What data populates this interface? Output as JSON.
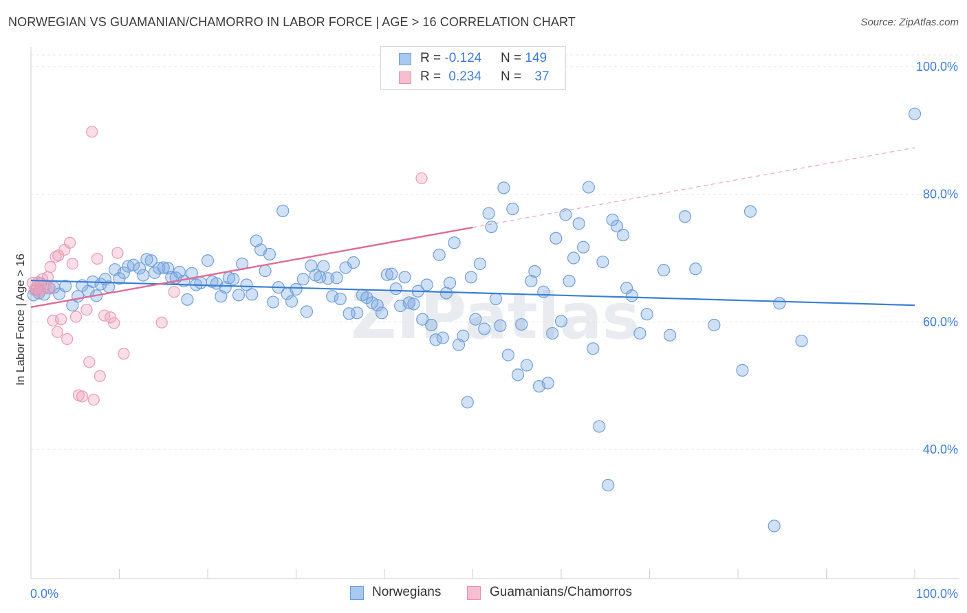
{
  "title": "NORWEGIAN VS GUAMANIAN/CHAMORRO IN LABOR FORCE | AGE > 16 CORRELATION CHART",
  "source": "Source: ZipAtlas.com",
  "watermark": "ZIPatlas",
  "legend_top": {
    "rows": [
      {
        "r_label": "R = ",
        "r_value": "-0.124",
        "n_label": "N = ",
        "n_value": "149",
        "color": "#a9c8f0",
        "border": "#6a9fd8"
      },
      {
        "r_label": "R = ",
        "r_value": "0.234",
        "n_label": "N = ",
        "n_value": "37",
        "color": "#f6bfcf",
        "border": "#e890aa"
      }
    ]
  },
  "legend_bottom": {
    "items": [
      {
        "label": "Norwegians",
        "color": "#a9c8f0",
        "border": "#6a9fd8"
      },
      {
        "label": "Guamanians/Chamorros",
        "color": "#f6bfcf",
        "border": "#e890aa"
      }
    ]
  },
  "colors": {
    "blue_fill": "rgba(120,165,225,0.35)",
    "blue_stroke": "#6f9fd9",
    "blue_line": "#3a7fd0",
    "pink_fill": "rgba(240,160,185,0.35)",
    "pink_stroke": "#e79ab2",
    "pink_line": "#e06b95",
    "tick_label": "#3d7dd6",
    "grid": "#e3e3e3"
  },
  "chart_data": {
    "type": "scatter",
    "title": "NORWEGIAN VS GUAMANIAN/CHAMORRO IN LABOR FORCE | AGE > 16 CORRELATION CHART",
    "xlabel": "",
    "ylabel": "In Labor Force | Age > 16",
    "xlim": [
      0,
      100
    ],
    "ylim": [
      20,
      102
    ],
    "x_tick_labels": [
      "0.0%",
      "100.0%"
    ],
    "y_ticks": [
      40,
      60,
      80,
      100
    ],
    "y_tick_labels": [
      "40.0%",
      "60.0%",
      "80.0%",
      "100.0%"
    ],
    "grid": true,
    "legend_position": "top-center",
    "series": [
      {
        "name": "Norwegians",
        "trend": {
          "x": [
            0,
            100
          ],
          "y": [
            66.5,
            62.6
          ]
        },
        "points": [
          [
            0.3,
            64.2
          ],
          [
            0.6,
            65.0
          ],
          [
            0.9,
            64.5
          ],
          [
            1.1,
            66.0
          ],
          [
            1.5,
            64.3
          ],
          [
            2.0,
            65.3
          ],
          [
            2.6,
            65.4
          ],
          [
            3.2,
            64.4
          ],
          [
            3.9,
            65.6
          ],
          [
            4.7,
            62.6
          ],
          [
            5.3,
            64.0
          ],
          [
            5.8,
            65.7
          ],
          [
            6.5,
            64.8
          ],
          [
            7.0,
            66.3
          ],
          [
            7.4,
            64.1
          ],
          [
            7.9,
            65.9
          ],
          [
            8.4,
            66.7
          ],
          [
            8.8,
            65.5
          ],
          [
            9.5,
            68.2
          ],
          [
            10.0,
            66.8
          ],
          [
            10.5,
            67.7
          ],
          [
            11.0,
            68.7
          ],
          [
            11.6,
            68.9
          ],
          [
            12.3,
            68.4
          ],
          [
            12.7,
            67.3
          ],
          [
            13.1,
            69.8
          ],
          [
            13.6,
            69.6
          ],
          [
            14.0,
            67.7
          ],
          [
            14.5,
            68.4
          ],
          [
            15.0,
            68.5
          ],
          [
            15.5,
            68.4
          ],
          [
            15.9,
            67.0
          ],
          [
            16.4,
            66.9
          ],
          [
            16.8,
            67.8
          ],
          [
            17.3,
            66.4
          ],
          [
            17.7,
            63.5
          ],
          [
            18.2,
            67.6
          ],
          [
            18.7,
            65.8
          ],
          [
            19.2,
            66.1
          ],
          [
            20.0,
            69.6
          ],
          [
            20.5,
            66.3
          ],
          [
            21.0,
            66.0
          ],
          [
            21.5,
            64.0
          ],
          [
            22.0,
            65.4
          ],
          [
            22.4,
            66.9
          ],
          [
            22.9,
            66.7
          ],
          [
            23.5,
            64.2
          ],
          [
            23.9,
            69.1
          ],
          [
            24.4,
            65.8
          ],
          [
            25.0,
            64.3
          ],
          [
            25.5,
            72.7
          ],
          [
            26.0,
            71.3
          ],
          [
            26.5,
            68.0
          ],
          [
            27.0,
            70.6
          ],
          [
            27.4,
            63.1
          ],
          [
            28.0,
            65.4
          ],
          [
            28.5,
            77.4
          ],
          [
            29.0,
            64.4
          ],
          [
            29.5,
            63.2
          ],
          [
            30.0,
            65.1
          ],
          [
            30.8,
            66.7
          ],
          [
            31.2,
            61.6
          ],
          [
            31.7,
            68.8
          ],
          [
            32.2,
            67.3
          ],
          [
            32.7,
            67.0
          ],
          [
            33.1,
            68.7
          ],
          [
            33.6,
            66.8
          ],
          [
            34.1,
            64.0
          ],
          [
            34.6,
            66.9
          ],
          [
            35.0,
            63.6
          ],
          [
            35.6,
            68.5
          ],
          [
            36.0,
            61.3
          ],
          [
            36.5,
            69.3
          ],
          [
            36.9,
            61.4
          ],
          [
            37.5,
            64.2
          ],
          [
            38.0,
            63.8
          ],
          [
            38.6,
            63.0
          ],
          [
            39.2,
            62.6
          ],
          [
            39.7,
            61.4
          ],
          [
            40.3,
            67.4
          ],
          [
            40.8,
            67.5
          ],
          [
            41.3,
            65.2
          ],
          [
            41.8,
            62.5
          ],
          [
            42.3,
            67.0
          ],
          [
            42.8,
            63.0
          ],
          [
            43.3,
            62.8
          ],
          [
            43.8,
            64.8
          ],
          [
            44.3,
            60.4
          ],
          [
            44.8,
            65.8
          ],
          [
            45.3,
            59.5
          ],
          [
            45.8,
            57.2
          ],
          [
            46.2,
            70.5
          ],
          [
            46.6,
            57.5
          ],
          [
            47.0,
            64.5
          ],
          [
            47.4,
            66.1
          ],
          [
            47.9,
            72.4
          ],
          [
            48.4,
            56.4
          ],
          [
            48.9,
            57.8
          ],
          [
            49.4,
            47.4
          ],
          [
            49.8,
            67.0
          ],
          [
            50.3,
            60.4
          ],
          [
            50.8,
            69.1
          ],
          [
            51.3,
            58.9
          ],
          [
            51.8,
            77.0
          ],
          [
            52.1,
            74.9
          ],
          [
            52.6,
            63.6
          ],
          [
            53.1,
            59.4
          ],
          [
            53.5,
            81.0
          ],
          [
            54.0,
            54.8
          ],
          [
            54.5,
            77.7
          ],
          [
            55.1,
            51.7
          ],
          [
            55.5,
            59.6
          ],
          [
            56.1,
            53.2
          ],
          [
            56.6,
            66.4
          ],
          [
            57.0,
            67.9
          ],
          [
            57.5,
            49.9
          ],
          [
            58.0,
            64.7
          ],
          [
            58.5,
            50.4
          ],
          [
            59.0,
            58.2
          ],
          [
            59.4,
            73.1
          ],
          [
            60.0,
            60.1
          ],
          [
            60.5,
            76.8
          ],
          [
            60.9,
            66.4
          ],
          [
            61.4,
            70.0
          ],
          [
            62.0,
            75.4
          ],
          [
            62.5,
            71.7
          ],
          [
            63.1,
            81.1
          ],
          [
            63.6,
            55.8
          ],
          [
            64.3,
            43.6
          ],
          [
            64.7,
            69.4
          ],
          [
            65.3,
            34.4
          ],
          [
            65.8,
            76.0
          ],
          [
            66.3,
            75.0
          ],
          [
            67.0,
            73.6
          ],
          [
            67.4,
            65.3
          ],
          [
            68.0,
            64.1
          ],
          [
            68.9,
            58.2
          ],
          [
            69.7,
            61.2
          ],
          [
            71.6,
            68.1
          ],
          [
            72.3,
            57.9
          ],
          [
            74.0,
            76.5
          ],
          [
            75.2,
            68.3
          ],
          [
            77.3,
            59.5
          ],
          [
            80.5,
            52.4
          ],
          [
            81.4,
            77.3
          ],
          [
            84.1,
            28.0
          ],
          [
            84.7,
            62.9
          ],
          [
            87.2,
            57.0
          ],
          [
            100.0,
            92.6
          ]
        ]
      },
      {
        "name": "Guamanians/Chamorros",
        "trend": {
          "x": [
            0,
            50
          ],
          "y": [
            62.3,
            74.8
          ]
        },
        "trend_extension": {
          "x": [
            50,
            100
          ],
          "y": [
            74.8,
            87.3
          ]
        },
        "points": [
          [
            0.2,
            66.1
          ],
          [
            0.4,
            65.0
          ],
          [
            0.6,
            65.4
          ],
          [
            0.8,
            66.2
          ],
          [
            1.0,
            64.9
          ],
          [
            1.3,
            66.7
          ],
          [
            1.6,
            65.5
          ],
          [
            1.9,
            67.0
          ],
          [
            2.2,
            68.6
          ],
          [
            2.5,
            60.2
          ],
          [
            2.8,
            70.2
          ],
          [
            3.1,
            70.4
          ],
          [
            3.4,
            60.4
          ],
          [
            3.8,
            71.3
          ],
          [
            4.1,
            57.3
          ],
          [
            4.4,
            72.4
          ],
          [
            4.7,
            69.1
          ],
          [
            5.1,
            60.8
          ],
          [
            5.4,
            48.5
          ],
          [
            5.8,
            48.3
          ],
          [
            6.3,
            61.9
          ],
          [
            6.6,
            53.7
          ],
          [
            6.9,
            89.8
          ],
          [
            7.1,
            47.8
          ],
          [
            7.5,
            69.9
          ],
          [
            7.8,
            51.5
          ],
          [
            8.3,
            61.0
          ],
          [
            9.0,
            60.7
          ],
          [
            9.4,
            59.8
          ],
          [
            9.8,
            70.8
          ],
          [
            10.5,
            55.0
          ],
          [
            14.8,
            59.9
          ],
          [
            16.2,
            64.7
          ],
          [
            44.2,
            82.5
          ],
          [
            3.0,
            58.4
          ],
          [
            2.2,
            65.2
          ],
          [
            0.9,
            64.8
          ]
        ]
      }
    ]
  }
}
